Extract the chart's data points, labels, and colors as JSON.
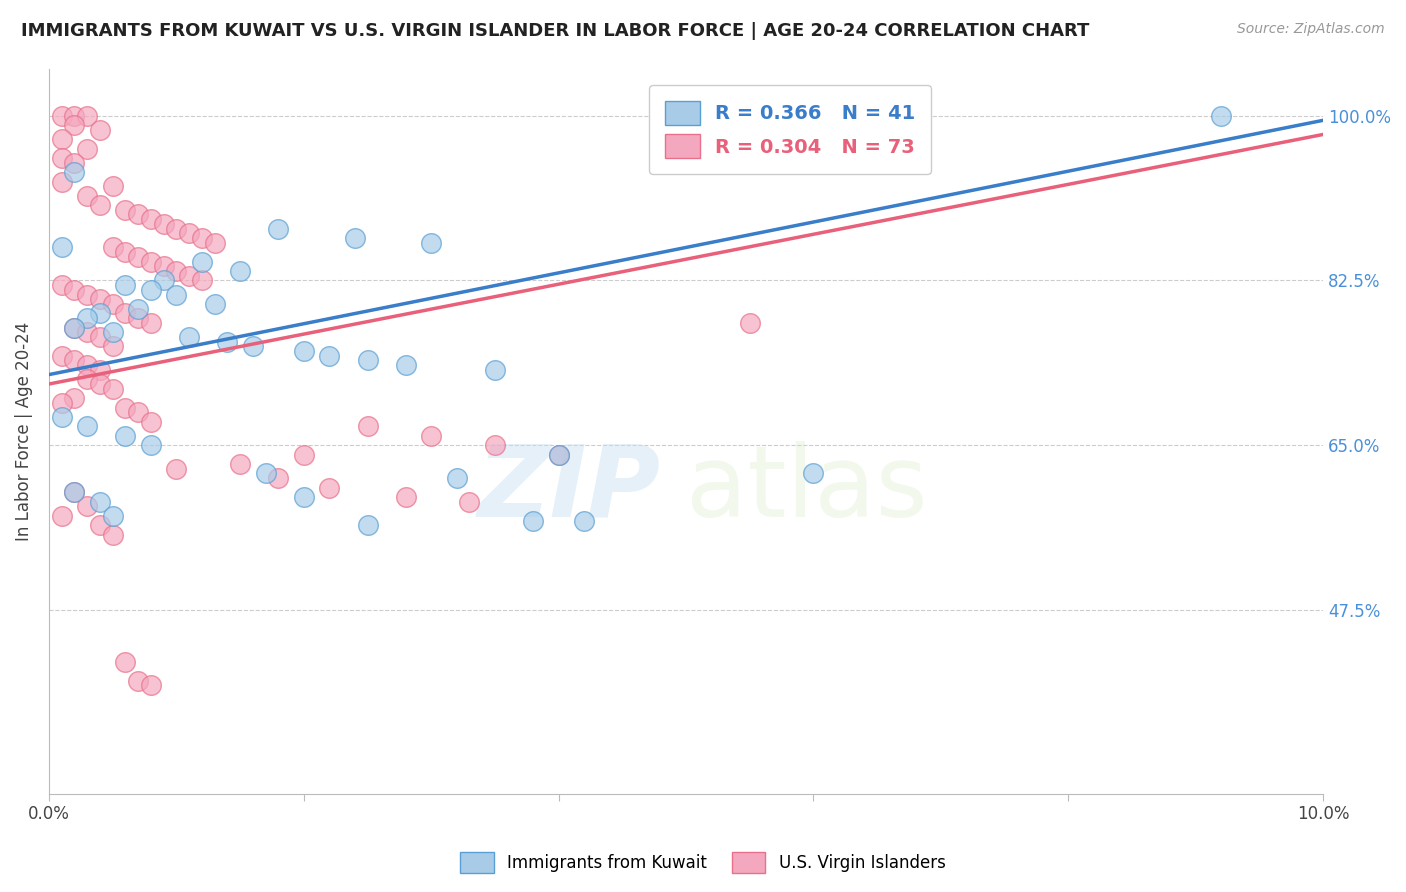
{
  "title": "IMMIGRANTS FROM KUWAIT VS U.S. VIRGIN ISLANDER IN LABOR FORCE | AGE 20-24 CORRELATION CHART",
  "source": "Source: ZipAtlas.com",
  "ylabel": "In Labor Force | Age 20-24",
  "xmin": 0.0,
  "xmax": 0.1,
  "ymin": 0.28,
  "ymax": 1.05,
  "yticks": [
    0.475,
    0.65,
    0.825,
    1.0
  ],
  "ytick_labels": [
    "47.5%",
    "65.0%",
    "82.5%",
    "100.0%"
  ],
  "xticks": [
    0.0,
    0.02,
    0.04,
    0.06,
    0.08,
    0.1
  ],
  "xtick_labels": [
    "0.0%",
    "",
    "",
    "",
    "",
    "10.0%"
  ],
  "legend_blue_label": "R = 0.366   N = 41",
  "legend_pink_label": "R = 0.304   N = 73",
  "watermark_zip": "ZIP",
  "watermark_atlas": "atlas",
  "blue_color": "#a8cce8",
  "pink_color": "#f4a8bf",
  "blue_edge_color": "#5a9fd4",
  "pink_edge_color": "#e8708a",
  "blue_line_color": "#3a7dc9",
  "pink_line_color": "#e8607a",
  "gray_dash_color": "#bbbbbb",
  "blue_line_x": [
    0.0,
    0.1
  ],
  "blue_line_y": [
    0.725,
    0.995
  ],
  "pink_line_x": [
    0.0,
    0.1
  ],
  "pink_line_y": [
    0.715,
    0.98
  ],
  "gray_line_x": [
    0.0,
    0.1
  ],
  "gray_line_y": [
    0.725,
    0.995
  ],
  "blue_scatter_x": [
    0.002,
    0.018,
    0.024,
    0.03,
    0.001,
    0.012,
    0.015,
    0.009,
    0.006,
    0.008,
    0.01,
    0.013,
    0.007,
    0.004,
    0.003,
    0.002,
    0.005,
    0.011,
    0.014,
    0.016,
    0.02,
    0.022,
    0.025,
    0.028,
    0.035,
    0.001,
    0.003,
    0.006,
    0.008,
    0.04,
    0.06,
    0.002,
    0.004,
    0.005,
    0.038,
    0.025,
    0.017,
    0.032,
    0.02,
    0.092,
    0.042
  ],
  "blue_scatter_y": [
    0.94,
    0.88,
    0.87,
    0.865,
    0.86,
    0.845,
    0.835,
    0.825,
    0.82,
    0.815,
    0.81,
    0.8,
    0.795,
    0.79,
    0.785,
    0.775,
    0.77,
    0.765,
    0.76,
    0.755,
    0.75,
    0.745,
    0.74,
    0.735,
    0.73,
    0.68,
    0.67,
    0.66,
    0.65,
    0.64,
    0.62,
    0.6,
    0.59,
    0.575,
    0.57,
    0.565,
    0.62,
    0.615,
    0.595,
    1.0,
    0.57
  ],
  "pink_scatter_x": [
    0.001,
    0.002,
    0.003,
    0.002,
    0.004,
    0.001,
    0.003,
    0.001,
    0.002,
    0.001,
    0.005,
    0.003,
    0.004,
    0.006,
    0.007,
    0.008,
    0.009,
    0.01,
    0.011,
    0.012,
    0.013,
    0.005,
    0.006,
    0.007,
    0.008,
    0.009,
    0.01,
    0.011,
    0.012,
    0.001,
    0.002,
    0.003,
    0.004,
    0.005,
    0.006,
    0.007,
    0.008,
    0.002,
    0.003,
    0.004,
    0.005,
    0.001,
    0.002,
    0.003,
    0.004,
    0.003,
    0.004,
    0.005,
    0.002,
    0.001,
    0.006,
    0.007,
    0.008,
    0.025,
    0.03,
    0.035,
    0.02,
    0.015,
    0.01,
    0.018,
    0.022,
    0.028,
    0.033,
    0.04,
    0.002,
    0.003,
    0.001,
    0.004,
    0.005,
    0.006,
    0.007,
    0.008,
    0.055
  ],
  "pink_scatter_y": [
    1.0,
    1.0,
    1.0,
    0.99,
    0.985,
    0.975,
    0.965,
    0.955,
    0.95,
    0.93,
    0.925,
    0.915,
    0.905,
    0.9,
    0.895,
    0.89,
    0.885,
    0.88,
    0.875,
    0.87,
    0.865,
    0.86,
    0.855,
    0.85,
    0.845,
    0.84,
    0.835,
    0.83,
    0.825,
    0.82,
    0.815,
    0.81,
    0.805,
    0.8,
    0.79,
    0.785,
    0.78,
    0.775,
    0.77,
    0.765,
    0.755,
    0.745,
    0.74,
    0.735,
    0.73,
    0.72,
    0.715,
    0.71,
    0.7,
    0.695,
    0.69,
    0.685,
    0.675,
    0.67,
    0.66,
    0.65,
    0.64,
    0.63,
    0.625,
    0.615,
    0.605,
    0.595,
    0.59,
    0.64,
    0.6,
    0.585,
    0.575,
    0.565,
    0.555,
    0.42,
    0.4,
    0.395,
    0.78
  ]
}
